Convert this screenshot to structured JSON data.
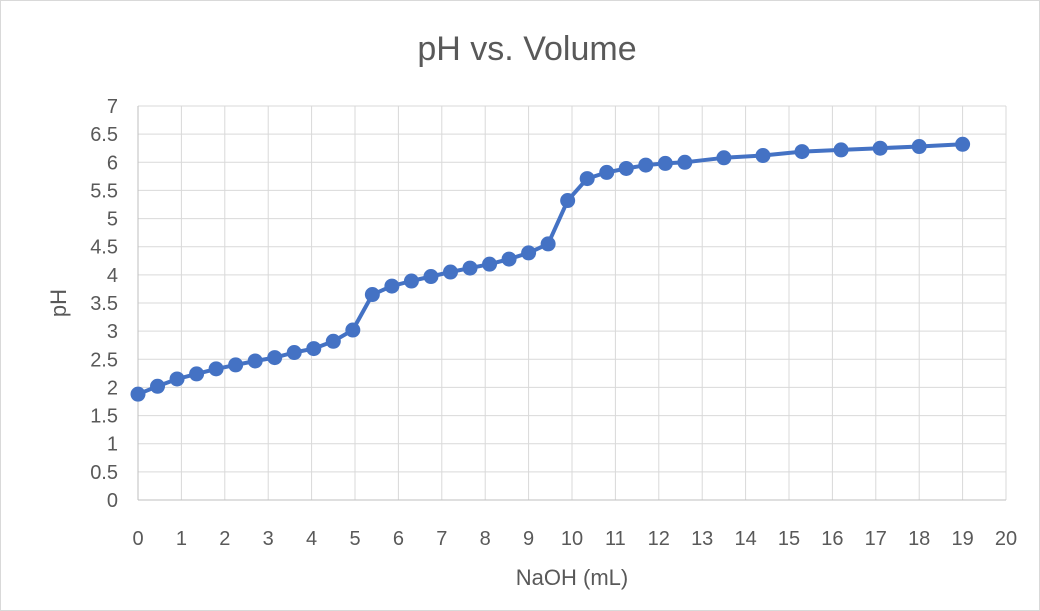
{
  "chart_data": {
    "type": "scatter",
    "title": "pH vs. Volume",
    "xlabel": "NaOH (mL)",
    "ylabel": "pH",
    "xlim": [
      0,
      20
    ],
    "ylim": [
      0,
      7
    ],
    "x_ticks": [
      "0",
      "1",
      "2",
      "3",
      "4",
      "5",
      "6",
      "7",
      "8",
      "9",
      "10",
      "11",
      "12",
      "13",
      "14",
      "15",
      "16",
      "17",
      "18",
      "19",
      "20"
    ],
    "y_ticks": [
      "0",
      "0.5",
      "1",
      "1.5",
      "2",
      "2.5",
      "3",
      "3.5",
      "4",
      "4.5",
      "5",
      "5.5",
      "6",
      "6.5",
      "7"
    ],
    "grid": true,
    "legend": "none",
    "line_style": "lines-with-markers",
    "series": [
      {
        "color": "#4472C4",
        "x": [
          0,
          0.45,
          0.9,
          1.35,
          1.8,
          2.25,
          2.7,
          3.15,
          3.6,
          4.05,
          4.5,
          4.95,
          5.4,
          5.85,
          6.3,
          6.75,
          7.2,
          7.65,
          8.1,
          8.55,
          9.0,
          9.45,
          9.9,
          10.35,
          10.8,
          11.25,
          11.7,
          12.15,
          12.6,
          13.5,
          14.4,
          15.3,
          16.2,
          17.1,
          18.0,
          19.0
        ],
        "y": [
          1.88,
          2.02,
          2.15,
          2.24,
          2.33,
          2.4,
          2.47,
          2.53,
          2.62,
          2.69,
          2.82,
          3.02,
          3.65,
          3.8,
          3.89,
          3.97,
          4.05,
          4.12,
          4.19,
          4.28,
          4.39,
          4.55,
          5.32,
          5.71,
          5.82,
          5.89,
          5.95,
          5.98,
          6.0,
          6.08,
          6.12,
          6.19,
          6.22,
          6.25,
          6.28,
          6.32
        ]
      }
    ]
  }
}
